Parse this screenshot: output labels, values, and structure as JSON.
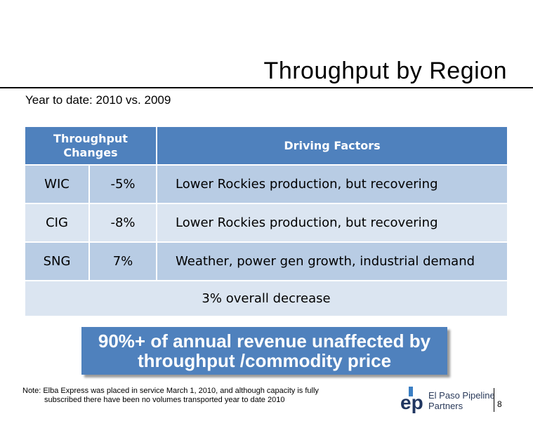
{
  "slide": {
    "title": "Throughput by Region",
    "subtitle": "Year to date: 2010 vs. 2009"
  },
  "table": {
    "headers": {
      "changes": "Throughput Changes",
      "factors": "Driving Factors"
    },
    "rows": [
      {
        "region": "WIC",
        "change": "-5%",
        "factor": "Lower Rockies production, but recovering"
      },
      {
        "region": "CIG",
        "change": "-8%",
        "factor": "Lower Rockies production, but recovering"
      },
      {
        "region": "SNG",
        "change": "7%",
        "factor": "Weather, power gen growth, industrial demand"
      }
    ],
    "overall": "3% overall decrease"
  },
  "callout": {
    "line1": "90%+ of annual revenue unaffected by",
    "line2": "throughput /commodity price"
  },
  "note": {
    "line1": "Note: Elba Express was placed in service March 1, 2010, and although capacity is fully",
    "line2": "subscribed there have been no volumes transported year to date 2010"
  },
  "logo": {
    "mark": "ep",
    "line1": "El Paso Pipeline",
    "line2": "Partners"
  },
  "page_number": "8",
  "colors": {
    "header": "#4f81bd",
    "row_dark": "#b8cce4",
    "row_light": "#dbe5f1",
    "callout": "#4f81bd"
  }
}
